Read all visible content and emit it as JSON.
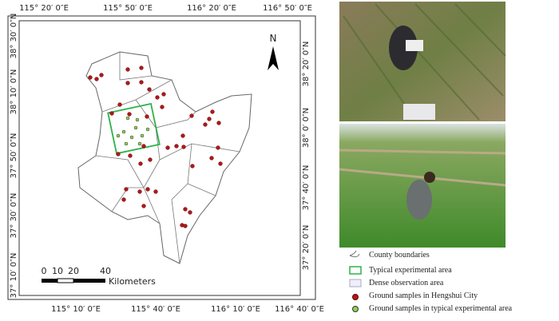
{
  "map": {
    "top_labels": [
      "115° 20′ 0″E",
      "115° 50′ 0″E",
      "116° 20′ 0″E",
      "116° 50′ 0″E"
    ],
    "bottom_labels": [
      "115° 10′ 0″E",
      "115° 40′ 0″E",
      "116° 10′ 0″E",
      "116° 40′ 0″E"
    ],
    "left_labels": [
      "38° 30′ 0″N",
      "38° 10′ 0″N",
      "37° 50′ 0″N",
      "37° 30′ 0″N",
      "37° 10′ 0″N"
    ],
    "right_labels": [
      "38° 20′ 0″N",
      "38° 0′ 0″N",
      "37° 40′ 0″N",
      "37° 20′ 0″N"
    ],
    "north": "N",
    "scale": {
      "ticks": [
        "0",
        "10",
        "20",
        "40"
      ],
      "unit": "Kilometers"
    }
  },
  "legend": [
    "County boundaries",
    "Typical experimental area",
    "Dense observation area",
    "Ground samples in Hengshui City",
    "Ground samples  in typical experimental area"
  ]
}
